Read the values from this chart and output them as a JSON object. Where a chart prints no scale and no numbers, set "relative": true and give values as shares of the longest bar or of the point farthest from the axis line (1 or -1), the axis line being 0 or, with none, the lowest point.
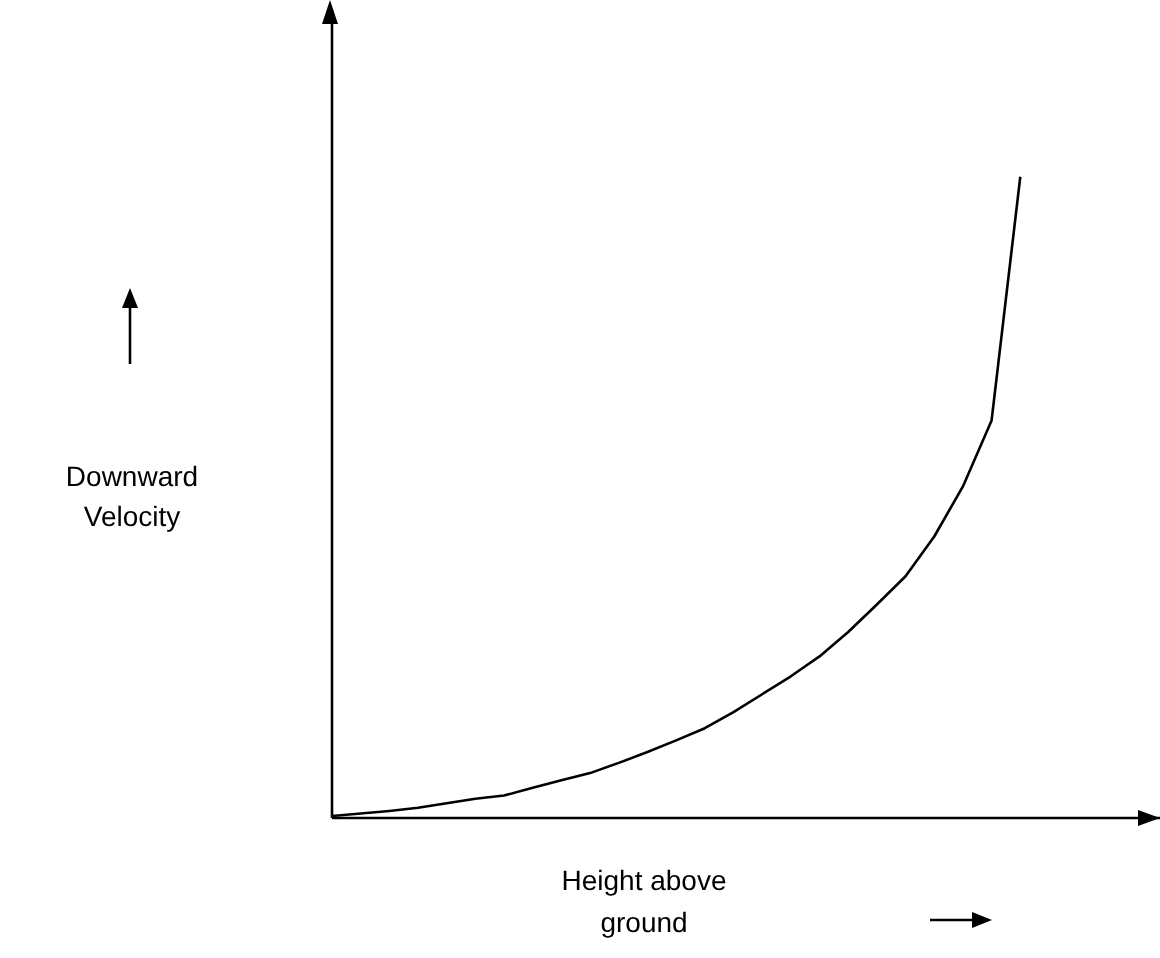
{
  "chart_data": {
    "type": "line",
    "relative": true,
    "xlabel": "Height above ground",
    "ylabel": "Downward Velocity",
    "categories": [
      null,
      null,
      null,
      null,
      null,
      null,
      null,
      null,
      null,
      null,
      null,
      null,
      null,
      null,
      null,
      null,
      null,
      null,
      null,
      null,
      null,
      null,
      null,
      null,
      null
    ],
    "series": [
      {
        "color": "#000000",
        "values": [
          0.003,
          0.007,
          0.011,
          0.016,
          0.023,
          0.03,
          0.035,
          0.047,
          0.059,
          0.07,
          0.086,
          0.103,
          0.121,
          0.14,
          0.165,
          0.193,
          0.221,
          0.252,
          0.29,
          0.333,
          0.377,
          0.439,
          0.517,
          0.62,
          1.0
        ]
      }
    ],
    "grid": false,
    "legend": false,
    "marker": "none",
    "line_style": "solid"
  }
}
